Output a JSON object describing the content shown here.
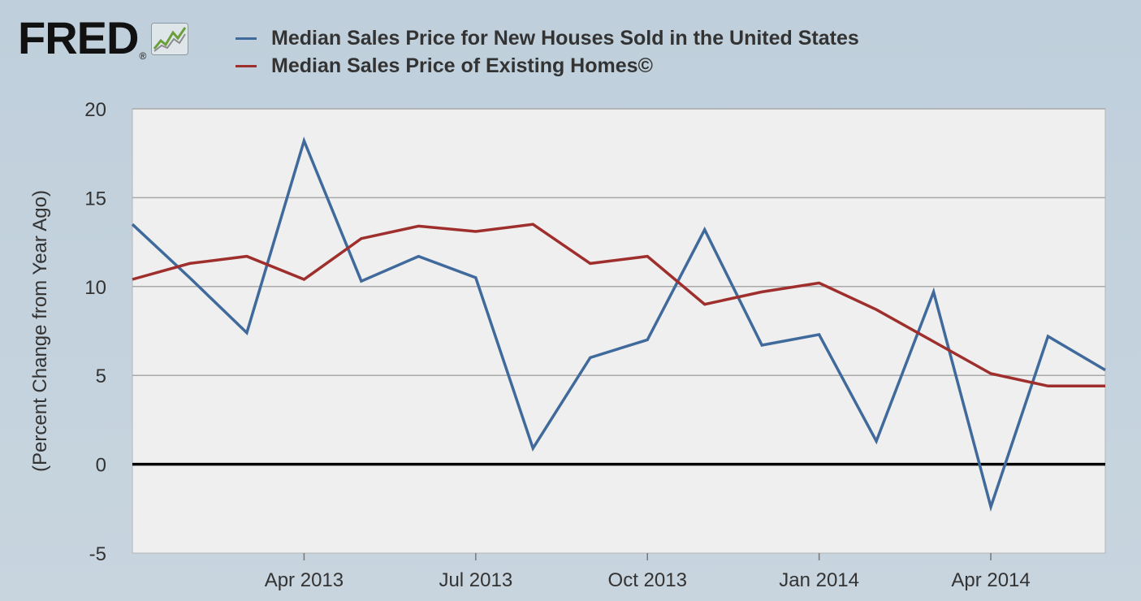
{
  "logo": {
    "text": "FRED",
    "reg": "®",
    "icon": "fred-chart-icon"
  },
  "colors": {
    "series_new": "#3f6a9b",
    "series_existing": "#9e2f2c",
    "plot_bg": "#efefef",
    "gridline": "#a9a9a9",
    "zero_line": "#000000",
    "page_bg": "#c5d3de"
  },
  "chart_data": {
    "type": "line",
    "title": "",
    "xlabel": "",
    "ylabel": "(Percent Change from Year Ago)",
    "ylim": [
      -5,
      20
    ],
    "yticks": [
      -5,
      0,
      5,
      10,
      15,
      20
    ],
    "x": [
      "2013-01",
      "2013-02",
      "2013-03",
      "2013-04",
      "2013-05",
      "2013-06",
      "2013-07",
      "2013-08",
      "2013-09",
      "2013-10",
      "2013-11",
      "2013-12",
      "2014-01",
      "2014-02",
      "2014-03",
      "2014-04",
      "2014-05",
      "2014-06"
    ],
    "xticks": [
      {
        "index": 3,
        "label": "Apr 2013"
      },
      {
        "index": 6,
        "label": "Jul 2013"
      },
      {
        "index": 9,
        "label": "Oct 2013"
      },
      {
        "index": 12,
        "label": "Jan 2014"
      },
      {
        "index": 15,
        "label": "Apr 2014"
      }
    ],
    "grid": true,
    "legend_position": "top",
    "series": [
      {
        "name": "Median Sales Price for New Houses Sold in the United States",
        "color": "#3f6a9b",
        "values": [
          13.5,
          10.5,
          7.4,
          18.2,
          10.3,
          11.7,
          10.5,
          0.9,
          6.0,
          7.0,
          13.2,
          6.7,
          7.3,
          1.3,
          9.7,
          -2.4,
          7.2,
          5.3
        ]
      },
      {
        "name": "Median Sales Price of Existing Homes©",
        "color": "#9e2f2c",
        "values": [
          10.4,
          11.3,
          11.7,
          10.4,
          12.7,
          13.4,
          13.1,
          13.5,
          11.3,
          11.7,
          9.0,
          9.7,
          10.2,
          8.7,
          6.9,
          5.1,
          4.4,
          4.4
        ]
      }
    ]
  }
}
